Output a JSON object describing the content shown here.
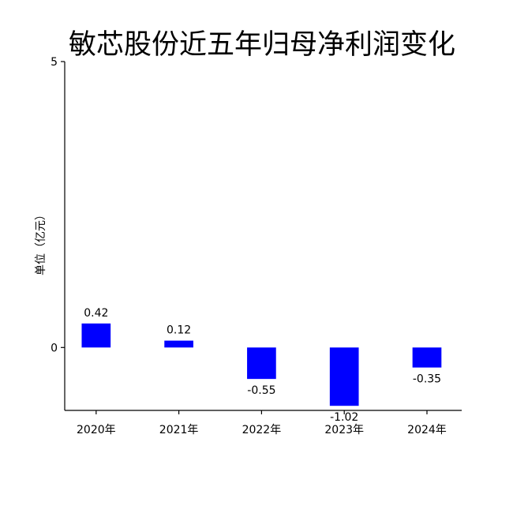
{
  "chart_data": {
    "type": "bar",
    "title": "敏芯股份近五年归母净利润变化",
    "xlabel": "",
    "ylabel": "单位（亿元）",
    "categories": [
      "2020年",
      "2021年",
      "2022年",
      "2023年",
      "2024年"
    ],
    "values": [
      0.42,
      0.12,
      -0.55,
      -1.02,
      -0.35
    ],
    "data_labels": [
      "0.42",
      "0.12",
      "-0.55",
      "-1.02",
      "-0.35"
    ],
    "yticks": [
      0,
      5
    ],
    "ytick_labels": [
      "0",
      "5"
    ],
    "ylim": [
      -1.1,
      5
    ],
    "grid": false,
    "bar_color": "#0000ff"
  }
}
